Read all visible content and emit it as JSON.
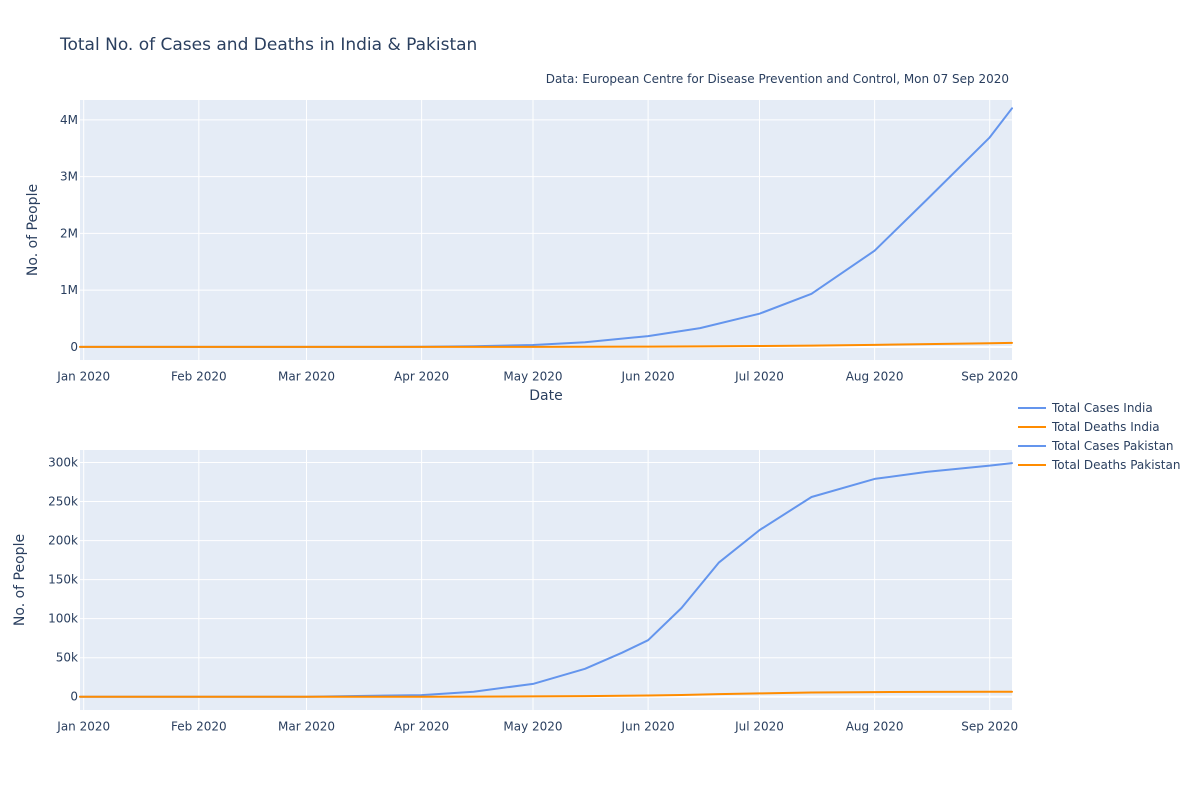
{
  "chart_data": [
    {
      "type": "line",
      "title": "Total No. of Cases and Deaths in India & Pakistan",
      "annotation": "Data: European Centre for Disease Prevention and Control, Mon 07 Sep 2020",
      "xlabel": "Date",
      "ylabel": "No. of People",
      "x_ticks": [
        "Jan 2020",
        "Feb 2020",
        "Mar 2020",
        "Apr 2020",
        "May 2020",
        "Jun 2020",
        "Jul 2020",
        "Aug 2020",
        "Sep 2020"
      ],
      "y_ticks": [
        "0",
        "1M",
        "2M",
        "3M",
        "4M"
      ],
      "y_tick_values": [
        0,
        1000000,
        2000000,
        3000000,
        4000000
      ],
      "xlim": [
        "2019-12-31",
        "2020-09-07"
      ],
      "ylim": [
        -230000,
        4350000
      ],
      "grid": true,
      "x": [
        "2019-12-31",
        "2020-03-01",
        "2020-04-01",
        "2020-04-15",
        "2020-05-01",
        "2020-05-15",
        "2020-06-01",
        "2020-06-15",
        "2020-07-01",
        "2020-07-15",
        "2020-08-01",
        "2020-08-15",
        "2020-09-01",
        "2020-09-07"
      ],
      "series": [
        {
          "name": "Total Cases India",
          "color": "#6495ed",
          "values": [
            0,
            3,
            1998,
            11439,
            35043,
            81970,
            190535,
            332424,
            585493,
            936181,
            1695988,
            2589682,
            3691166,
            4204613
          ]
        },
        {
          "name": "Total Deaths India",
          "color": "#ff8c00",
          "values": [
            0,
            0,
            58,
            377,
            1147,
            2649,
            5394,
            9520,
            17400,
            24309,
            36511,
            49980,
            65288,
            71642
          ]
        }
      ]
    },
    {
      "type": "line",
      "xlabel": "",
      "ylabel": "No. of People",
      "x_ticks": [
        "Jan 2020",
        "Feb 2020",
        "Mar 2020",
        "Apr 2020",
        "May 2020",
        "Jun 2020",
        "Jul 2020",
        "Aug 2020",
        "Sep 2020"
      ],
      "y_ticks": [
        "0",
        "50k",
        "100k",
        "150k",
        "200k",
        "250k",
        "300k"
      ],
      "y_tick_values": [
        0,
        50000,
        100000,
        150000,
        200000,
        250000,
        300000
      ],
      "xlim": [
        "2019-12-31",
        "2020-09-07"
      ],
      "ylim": [
        -17000,
        316000
      ],
      "grid": true,
      "x": [
        "2019-12-31",
        "2020-03-01",
        "2020-04-01",
        "2020-04-15",
        "2020-05-01",
        "2020-05-15",
        "2020-05-25",
        "2020-06-01",
        "2020-06-10",
        "2020-06-20",
        "2020-07-01",
        "2020-07-15",
        "2020-08-01",
        "2020-08-15",
        "2020-09-01",
        "2020-09-07"
      ],
      "series": [
        {
          "name": "Total Cases Pakistan",
          "color": "#6495ed",
          "values": [
            0,
            4,
            2039,
            6383,
            16473,
            35788,
            56349,
            72460,
            113702,
            171666,
            213470,
            255769,
            279000,
            288000,
            296000,
            299233
          ]
        },
        {
          "name": "Total Deaths Pakistan",
          "color": "#ff8c00",
          "values": [
            0,
            0,
            27,
            111,
            385,
            770,
            1167,
            1543,
            2255,
            3382,
            4304,
            5386,
            5951,
            6153,
            6310,
            6342
          ]
        }
      ]
    }
  ],
  "legend": {
    "placement": "right",
    "entries": [
      {
        "label": "Total Cases India",
        "color": "#6495ed"
      },
      {
        "label": "Total Deaths India",
        "color": "#ff8c00"
      },
      {
        "label": "Total Cases Pakistan",
        "color": "#6495ed"
      },
      {
        "label": "Total Deaths Pakistan",
        "color": "#ff8c00"
      }
    ]
  },
  "colors": {
    "plot_background": "#e5ecf6",
    "grid": "#ffffff",
    "text": "#2a3f5f"
  }
}
